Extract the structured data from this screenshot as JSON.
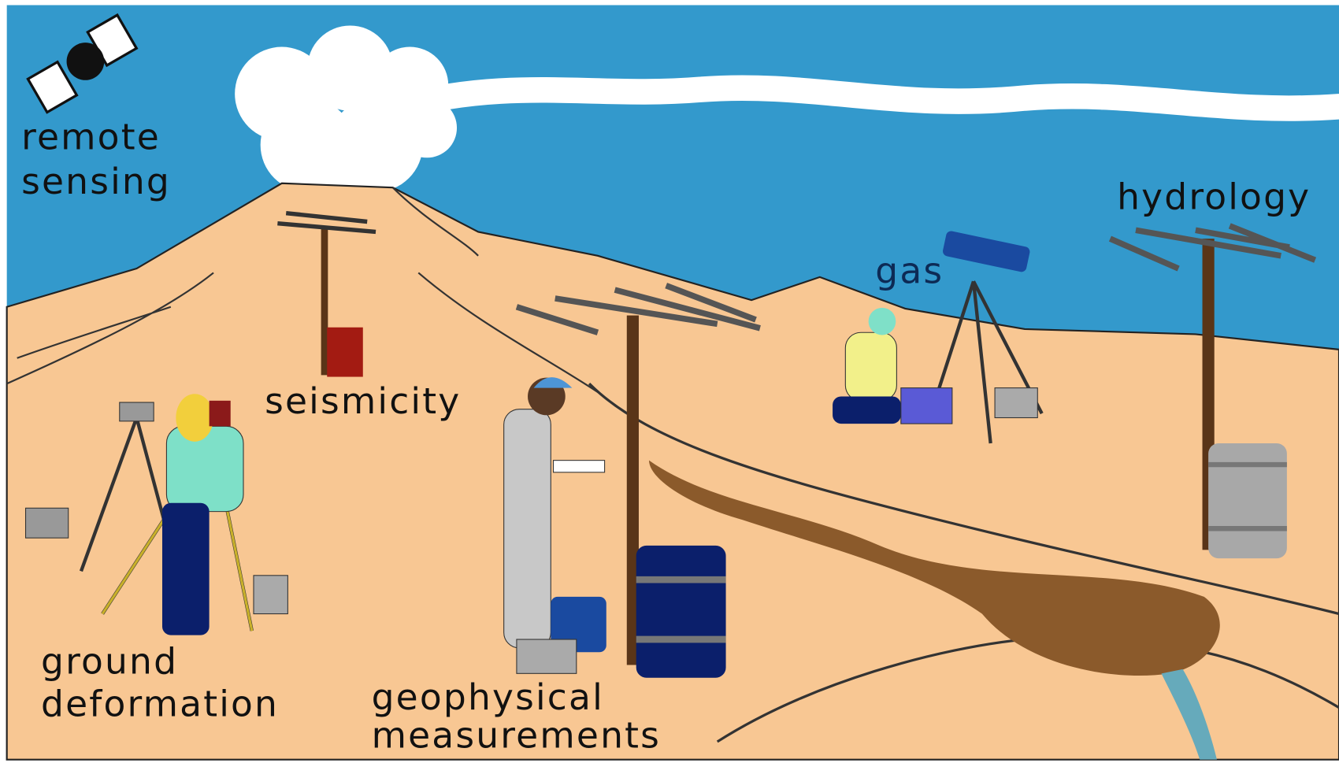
{
  "labels": [
    {
      "lines": [
        "remote",
        "sensing"
      ]
    },
    {
      "lines": [
        "seismicity"
      ]
    },
    {
      "lines": [
        "ground",
        "deformation"
      ]
    },
    {
      "lines": [
        "geophysical",
        "measurements"
      ]
    },
    {
      "lines": [
        "gas"
      ]
    },
    {
      "lines": [
        "hydrology"
      ]
    }
  ]
}
